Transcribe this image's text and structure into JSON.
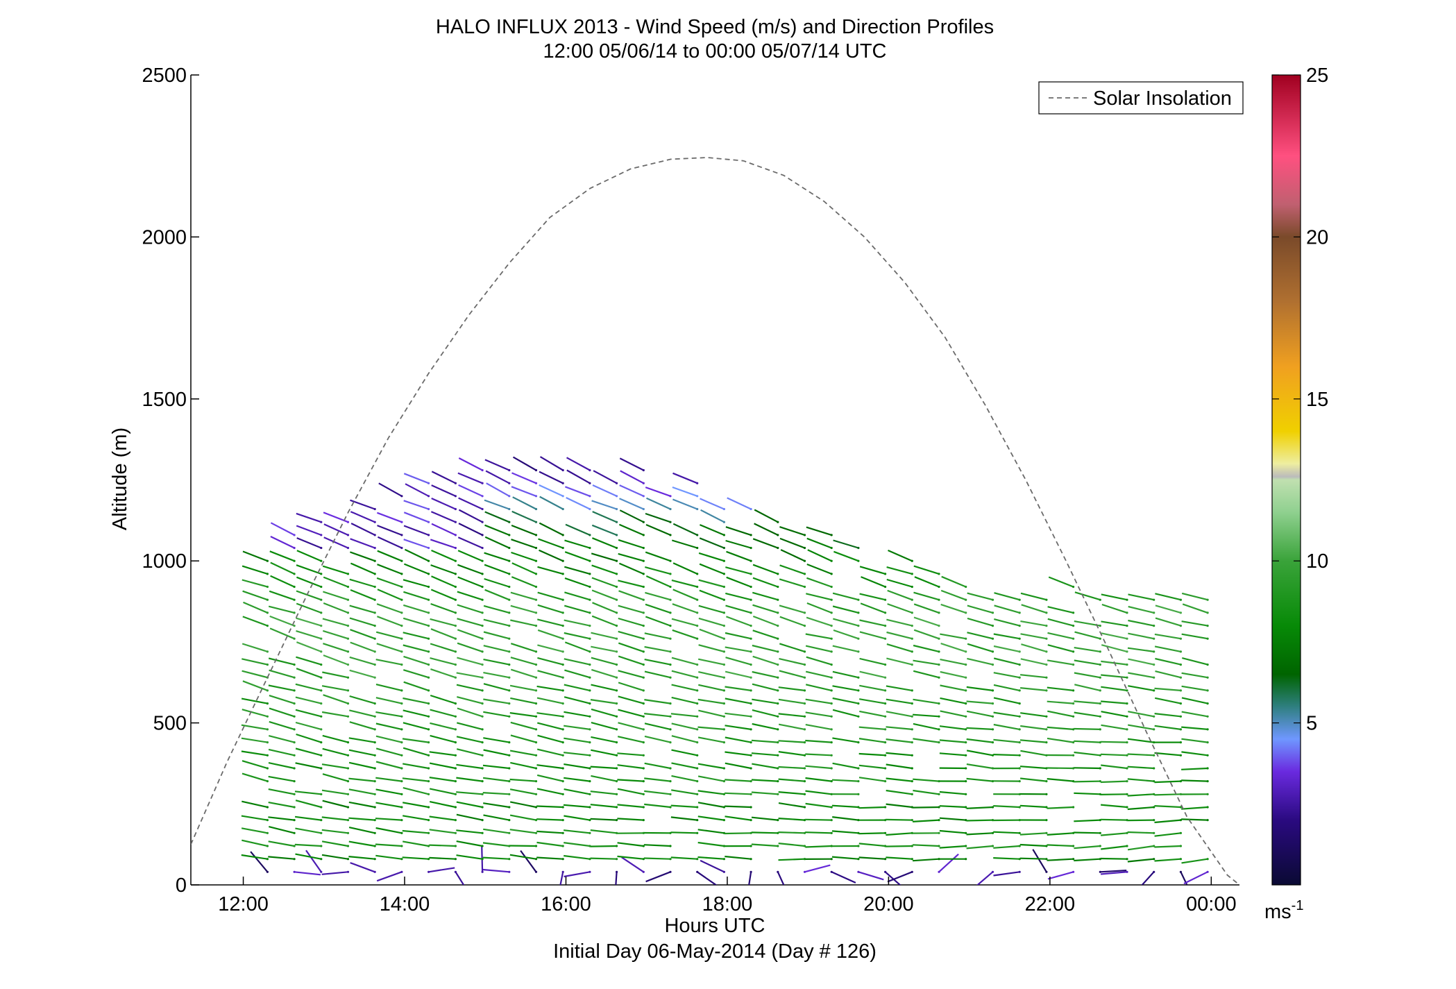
{
  "chart_data": {
    "type": "wind barb profile",
    "title": "HALO INFLUX 2013 - Wind Speed (m/s) and Direction Profiles",
    "subtitle": "12:00 05/06/14 to 00:00 05/07/14  UTC",
    "xlabel": "Hours UTC",
    "xlabel2": "Initial Day 06-May-2014 (Day # 126)",
    "ylabel": "Altitude (m)",
    "xlim_hours": [
      11.35,
      24.35
    ],
    "ylim": [
      0,
      2500
    ],
    "x_ticks": [
      {
        "hour": 12,
        "label": "12:00"
      },
      {
        "hour": 14,
        "label": "14:00"
      },
      {
        "hour": 16,
        "label": "16:00"
      },
      {
        "hour": 18,
        "label": "18:00"
      },
      {
        "hour": 20,
        "label": "20:00"
      },
      {
        "hour": 22,
        "label": "22:00"
      },
      {
        "hour": 24,
        "label": "00:00"
      }
    ],
    "y_ticks": [
      0,
      500,
      1000,
      1500,
      2000,
      2500
    ],
    "colorbar": {
      "ticks": [
        5,
        10,
        15,
        20,
        25
      ],
      "range": [
        0,
        25
      ],
      "unit_label": "ms",
      "unit_exponent": "-1",
      "stops": [
        {
          "v": 0,
          "c": "#0a0a33"
        },
        {
          "v": 2,
          "c": "#2a0a80"
        },
        {
          "v": 3.5,
          "c": "#6a2adf"
        },
        {
          "v": 4.5,
          "c": "#6f97ff"
        },
        {
          "v": 5.5,
          "c": "#2f7f80"
        },
        {
          "v": 6.5,
          "c": "#006400"
        },
        {
          "v": 8,
          "c": "#078a07"
        },
        {
          "v": 10,
          "c": "#3aa33a"
        },
        {
          "v": 11.5,
          "c": "#8fd08f"
        },
        {
          "v": 12.5,
          "c": "#c0e0b0"
        },
        {
          "v": 12.6,
          "c": "#bbbbbb"
        },
        {
          "v": 13,
          "c": "#eeeea0"
        },
        {
          "v": 14,
          "c": "#f0d000"
        },
        {
          "v": 16,
          "c": "#f0a020"
        },
        {
          "v": 18,
          "c": "#b07030"
        },
        {
          "v": 20,
          "c": "#7a4a2a"
        },
        {
          "v": 21,
          "c": "#c06070"
        },
        {
          "v": 22.5,
          "c": "#ff5080"
        },
        {
          "v": 25,
          "c": "#a00020"
        }
      ]
    },
    "solar_insolation": {
      "name": "Solar Insolation",
      "hours": [
        11.35,
        11.8,
        12.3,
        12.8,
        13.3,
        13.8,
        14.3,
        14.8,
        15.3,
        15.8,
        16.3,
        16.8,
        17.3,
        17.75,
        18.2,
        18.7,
        19.2,
        19.7,
        20.2,
        20.7,
        21.2,
        21.7,
        22.2,
        22.7,
        23.2,
        23.7,
        24.2,
        24.35
      ],
      "altitude": [
        125,
        380,
        640,
        900,
        1150,
        1380,
        1580,
        1760,
        1920,
        2060,
        2150,
        2210,
        2240,
        2245,
        2235,
        2190,
        2110,
        2000,
        1860,
        1690,
        1480,
        1250,
        1000,
        740,
        470,
        210,
        30,
        0
      ]
    },
    "barbs": {
      "hour_start": 12.3,
      "hour_step": 0.333,
      "columns": 36,
      "altitude_levels": [
        40,
        80,
        120,
        160,
        200,
        240,
        280,
        320,
        360,
        400,
        440,
        480,
        520,
        560,
        600,
        640,
        680,
        720,
        760,
        800,
        840,
        880,
        920,
        960,
        1000,
        1040,
        1080,
        1120,
        1160,
        1200,
        1240,
        1280,
        1320
      ],
      "speed_profile_ms": [
        2,
        8,
        8.5,
        8.5,
        8,
        8,
        8.5,
        8.5,
        8.5,
        8.5,
        9,
        9,
        9,
        9,
        9,
        9.5,
        9.5,
        9.5,
        9.5,
        9.5,
        9.5,
        9,
        8.5,
        8,
        7.5,
        7,
        6.5,
        6,
        5,
        4,
        3,
        2.5,
        2
      ],
      "direction_note": "westerly to north-westerly aloft, variable near surface"
    }
  }
}
